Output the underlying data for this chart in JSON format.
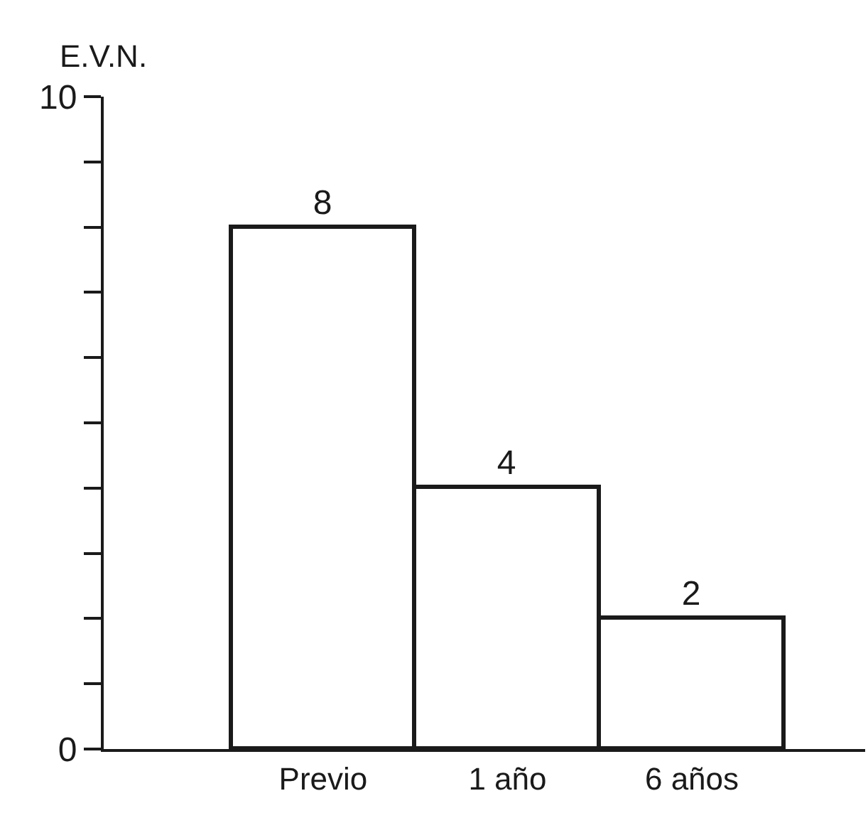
{
  "chart_data": {
    "type": "bar",
    "ylabel": "E.V.N.",
    "categories": [
      "Previo",
      "1 año",
      "6 años"
    ],
    "values": [
      8,
      4,
      2
    ],
    "color": "#ffffff",
    "ylim": [
      0,
      10
    ],
    "yticks": [
      0,
      {
        "value": 1,
        "label": null
      },
      {
        "value": 2,
        "label": null
      },
      {
        "value": 3,
        "label": null
      },
      {
        "value": 4,
        "label": null
      },
      {
        "value": 5,
        "label": null
      },
      {
        "value": 6,
        "label": null
      },
      {
        "value": 7,
        "label": null
      },
      {
        "value": 8,
        "label": null
      },
      {
        "value": 9,
        "label": null
      },
      10
    ],
    "data_labels": true
  }
}
